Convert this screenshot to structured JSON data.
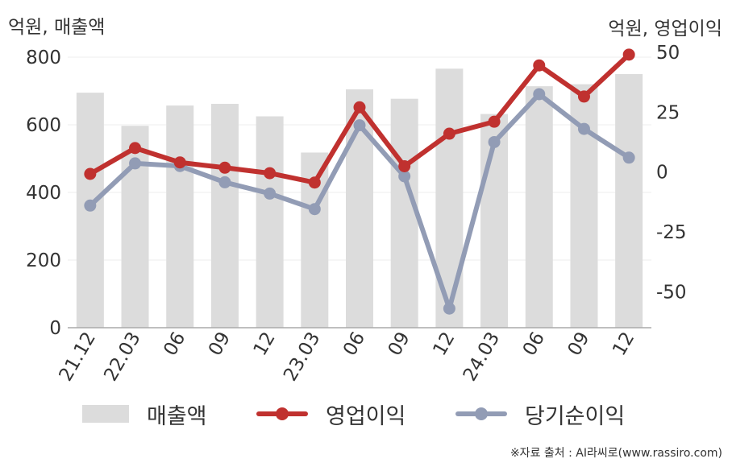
{
  "units": {
    "left": "억원, 매출액",
    "right": "억원, 영업이익"
  },
  "legend": {
    "revenue": "매출액",
    "operating_profit": "영업이익",
    "net_income": "당기순이익"
  },
  "source": "※자료 출처 : AI라씨로(www.rassiro.com)",
  "colors": {
    "revenue": "#dcdcdc",
    "operating_profit": "#c0312f",
    "net_income": "#929cb5",
    "axis": "#aaaaaa",
    "grid": "#eeeeee"
  },
  "chart_data": {
    "type": "bar+line",
    "categories": [
      "21.12",
      "22.03",
      "06",
      "09",
      "12",
      "23.03",
      "06",
      "09",
      "12",
      "24.03",
      "06",
      "09",
      "12"
    ],
    "left_axis": {
      "ticks": [
        0,
        200,
        400,
        600,
        800
      ],
      "ylim": [
        0,
        850
      ]
    },
    "right_axis": {
      "ticks": [
        -50,
        -25,
        0,
        25,
        50
      ],
      "ylim": [
        -65,
        55
      ]
    },
    "series": [
      {
        "name": "매출액",
        "type": "bar",
        "axis": "left",
        "values": [
          695,
          597,
          657,
          662,
          625,
          518,
          705,
          677,
          766,
          632,
          714,
          720,
          750
        ]
      },
      {
        "name": "영업이익",
        "type": "line",
        "axis": "right",
        "values": [
          -0.8,
          10,
          4,
          1.8,
          -0.5,
          -4.4,
          27,
          2.4,
          16,
          21,
          44.5,
          31.5,
          49
        ]
      },
      {
        "name": "당기순이익",
        "type": "line",
        "axis": "right",
        "values": [
          -14,
          3.6,
          2.5,
          -4.3,
          -9,
          -15.5,
          19.5,
          -1.8,
          -57,
          12.5,
          32.5,
          18,
          6
        ]
      }
    ]
  }
}
